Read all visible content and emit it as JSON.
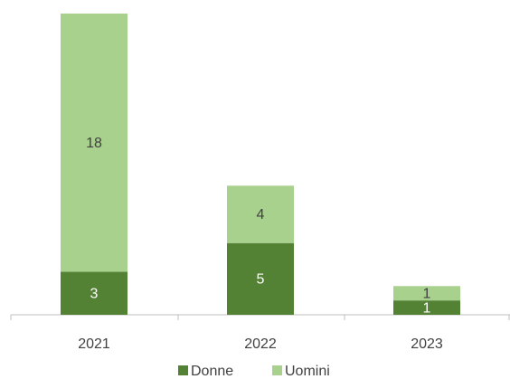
{
  "chart_data": {
    "type": "stacked_bar",
    "categories": [
      "2021",
      "2022",
      "2023"
    ],
    "series": [
      {
        "name": "Donne",
        "color": "#548235",
        "values": [
          3,
          5,
          1
        ]
      },
      {
        "name": "Uomini",
        "color": "#a9d18e",
        "values": [
          18,
          4,
          1
        ]
      }
    ],
    "legend": "bottom"
  }
}
